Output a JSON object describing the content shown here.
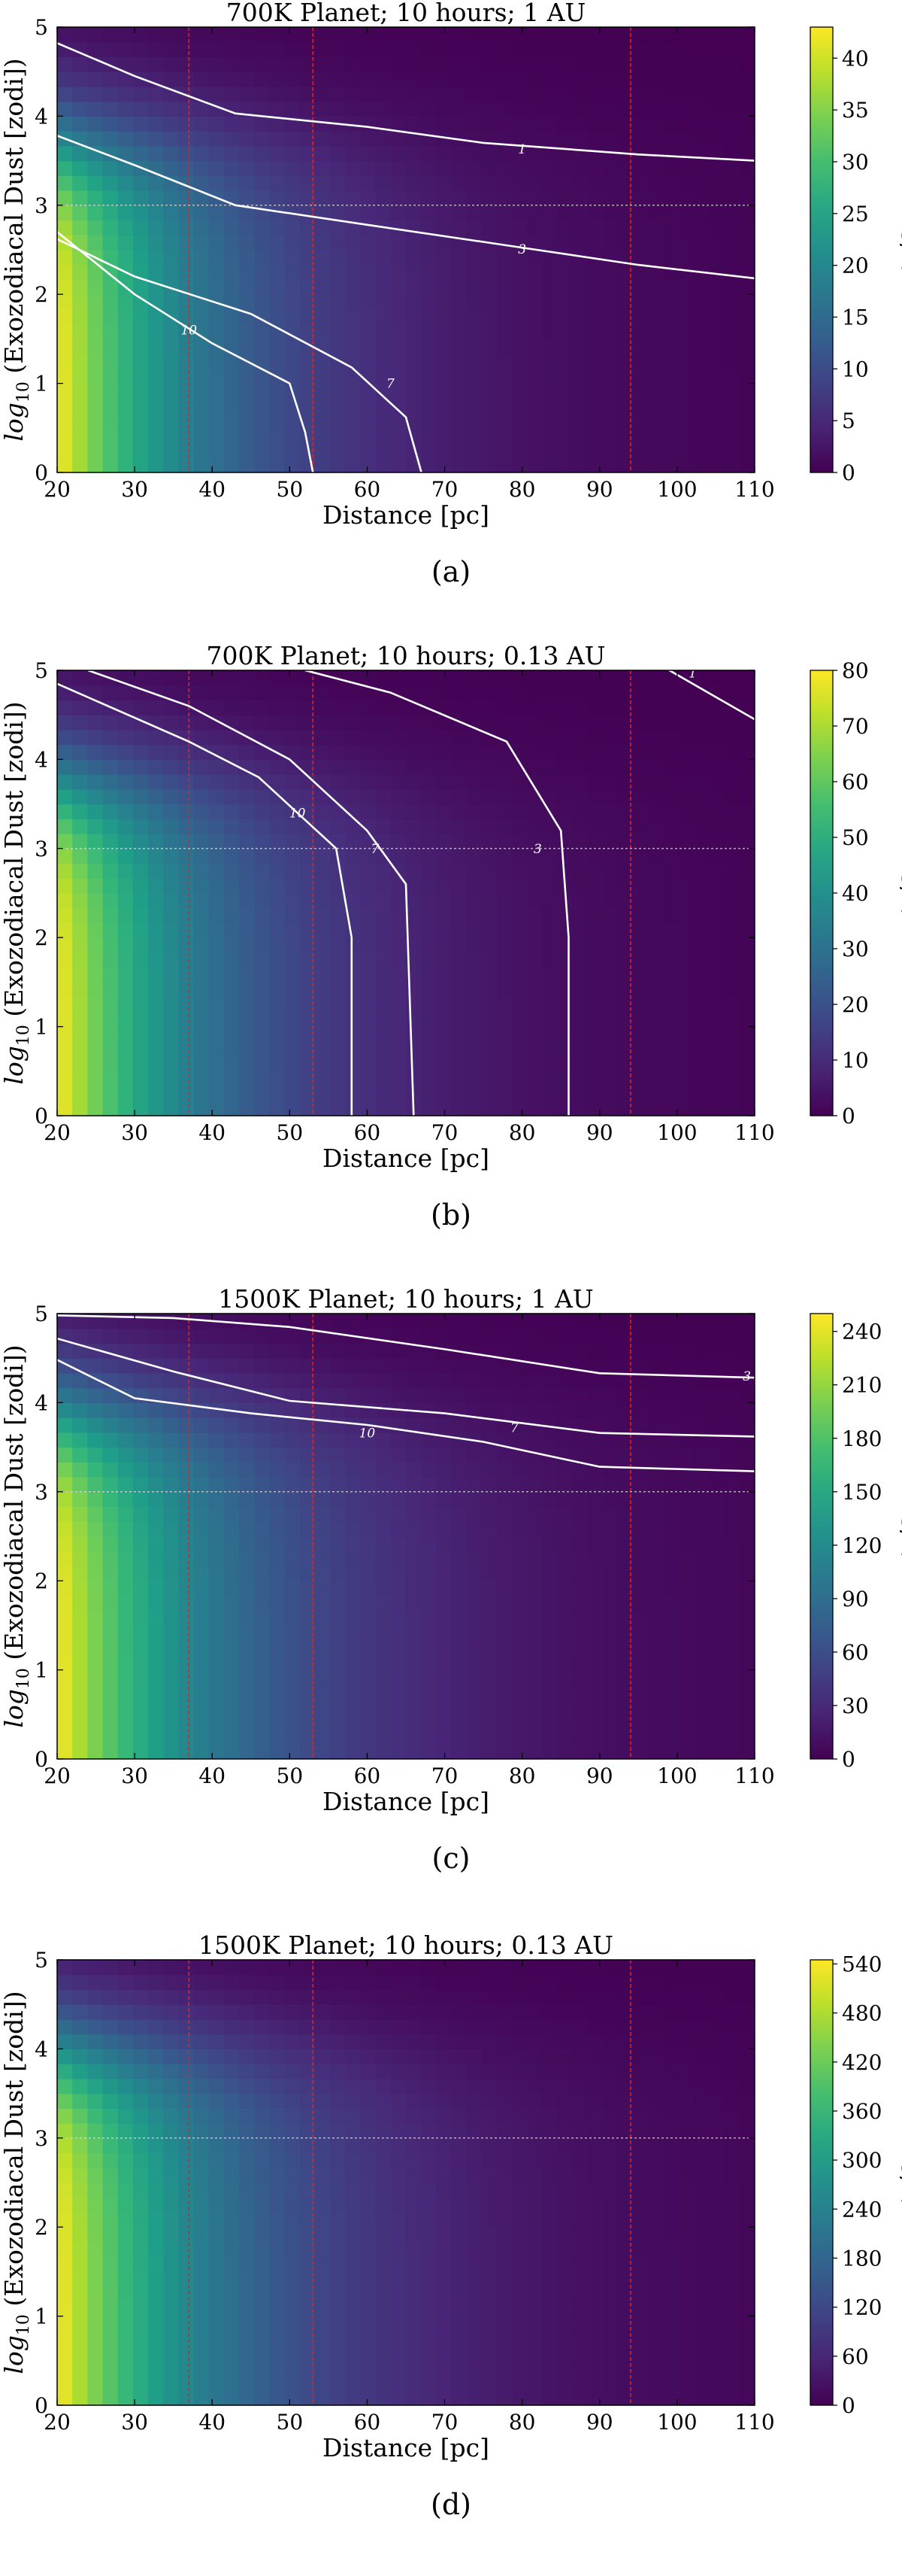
{
  "chart_data": [
    {
      "type": "heatmap",
      "title": "700K Planet; 10 hours; 1 AU",
      "xlabel": "Distance [pc]",
      "ylabel_prefix": "log",
      "ylabel_sub": "10",
      "ylabel_rest": " (Exozodiacal Dust [zodi])",
      "colorbar_label": "S/N",
      "caption": "(a)",
      "xlim": [
        20,
        110
      ],
      "ylim": [
        0,
        5
      ],
      "xticks": [
        "20",
        "30",
        "40",
        "50",
        "60",
        "70",
        "80",
        "90",
        "100",
        "110"
      ],
      "yticks": [
        "0",
        "1",
        "2",
        "3",
        "4",
        "5"
      ],
      "cbar_ticks": [
        "0",
        "5",
        "10",
        "15",
        "20",
        "25",
        "30",
        "35",
        "40"
      ],
      "cbar_ticks_values": [
        0,
        5,
        10,
        15,
        20,
        25,
        30,
        35,
        40
      ],
      "vmax": 43,
      "field": {
        "peak": 43,
        "x_scale": 20,
        "z_scale": 20
      },
      "contours": [
        {
          "level": "1",
          "points": [
            [
              20,
              4.82
            ],
            [
              30,
              4.45
            ],
            [
              43,
              4.03
            ],
            [
              60,
              3.88
            ],
            [
              75,
              3.7
            ],
            [
              95,
              3.57
            ],
            [
              110,
              3.5
            ]
          ],
          "label_at": [
            80,
            3.63
          ]
        },
        {
          "level": "3",
          "points": [
            [
              20,
              3.78
            ],
            [
              30,
              3.45
            ],
            [
              43,
              3.0
            ],
            [
              60,
              2.78
            ],
            [
              78,
              2.55
            ],
            [
              95,
              2.33
            ],
            [
              110,
              2.18
            ]
          ],
          "label_at": [
            80,
            2.51
          ]
        },
        {
          "level": "7",
          "points": [
            [
              20,
              2.62
            ],
            [
              30,
              2.2
            ],
            [
              45,
              1.78
            ],
            [
              58,
              1.18
            ],
            [
              65,
              0.62
            ],
            [
              67,
              0.0
            ]
          ],
          "label_at": [
            63,
            1.0
          ]
        },
        {
          "level": "10",
          "points": [
            [
              20,
              2.7
            ],
            [
              30,
              2.0
            ],
            [
              40,
              1.45
            ],
            [
              50,
              1.0
            ],
            [
              52,
              0.45
            ],
            [
              53,
              0.0
            ]
          ],
          "label_at": [
            37,
            1.6
          ]
        }
      ],
      "vlines": [
        37,
        53,
        94
      ],
      "hline": 3
    },
    {
      "type": "heatmap",
      "title": "700K Planet; 10 hours; 0.13 AU",
      "xlabel": "Distance [pc]",
      "ylabel_prefix": "log",
      "ylabel_sub": "10",
      "ylabel_rest": " (Exozodiacal Dust [zodi])",
      "colorbar_label": "S/N",
      "caption": "(b)",
      "xlim": [
        20,
        110
      ],
      "ylim": [
        0,
        5
      ],
      "xticks": [
        "20",
        "30",
        "40",
        "50",
        "60",
        "70",
        "80",
        "90",
        "100",
        "110"
      ],
      "yticks": [
        "0",
        "1",
        "2",
        "3",
        "4",
        "5"
      ],
      "cbar_ticks": [
        "0",
        "10",
        "20",
        "30",
        "40",
        "50",
        "60",
        "70",
        "80"
      ],
      "cbar_ticks_values": [
        0,
        10,
        20,
        30,
        40,
        50,
        60,
        70,
        80
      ],
      "vmax": 80,
      "field": {
        "peak": 80,
        "x_scale": 20,
        "z_scale": 18
      },
      "contours": [
        {
          "level": "1",
          "points": [
            [
              98,
              5.05
            ],
            [
              103,
              4.8
            ],
            [
              110,
              4.45
            ]
          ],
          "label_at": [
            102,
            4.97
          ]
        },
        {
          "level": "3",
          "points": [
            [
              52,
              5.0
            ],
            [
              63,
              4.75
            ],
            [
              78,
              4.2
            ],
            [
              85,
              3.2
            ],
            [
              86,
              2.0
            ],
            [
              86,
              0.0
            ]
          ],
          "label_at": [
            82,
            3.0
          ]
        },
        {
          "level": "7",
          "points": [
            [
              24,
              5.0
            ],
            [
              37,
              4.6
            ],
            [
              50,
              4.0
            ],
            [
              60,
              3.2
            ],
            [
              65,
              2.6
            ],
            [
              66,
              0.0
            ]
          ],
          "label_at": [
            61,
            3.0
          ]
        },
        {
          "level": "10",
          "points": [
            [
              20,
              4.85
            ],
            [
              37,
              4.2
            ],
            [
              46,
              3.8
            ],
            [
              56,
              3.0
            ],
            [
              58,
              2.0
            ],
            [
              58,
              0.0
            ]
          ],
          "label_at": [
            51,
            3.4
          ]
        }
      ],
      "vlines": [
        37,
        53,
        94
      ],
      "hline": 3
    },
    {
      "type": "heatmap",
      "title": "1500K Planet; 10 hours; 1 AU",
      "xlabel": "Distance [pc]",
      "ylabel_prefix": "log",
      "ylabel_sub": "10",
      "ylabel_rest": " (Exozodiacal Dust [zodi])",
      "colorbar_label": "S/N",
      "caption": "(c)",
      "xlim": [
        20,
        110
      ],
      "ylim": [
        0,
        5
      ],
      "xticks": [
        "20",
        "30",
        "40",
        "50",
        "60",
        "70",
        "80",
        "90",
        "100",
        "110"
      ],
      "yticks": [
        "0",
        "1",
        "2",
        "3",
        "4",
        "5"
      ],
      "cbar_ticks": [
        "0",
        "30",
        "60",
        "90",
        "120",
        "150",
        "180",
        "210",
        "240"
      ],
      "cbar_ticks_values": [
        0,
        30,
        60,
        90,
        120,
        150,
        180,
        210,
        240
      ],
      "vmax": 250,
      "field": {
        "peak": 250,
        "x_scale": 22,
        "z_scale": 12
      },
      "contours": [
        {
          "level": "3",
          "points": [
            [
              20,
              4.98
            ],
            [
              35,
              4.95
            ],
            [
              50,
              4.85
            ],
            [
              70,
              4.6
            ],
            [
              90,
              4.33
            ],
            [
              110,
              4.28
            ]
          ],
          "label_at": [
            109,
            4.3
          ]
        },
        {
          "level": "7",
          "points": [
            [
              20,
              4.72
            ],
            [
              35,
              4.35
            ],
            [
              50,
              4.02
            ],
            [
              70,
              3.88
            ],
            [
              90,
              3.66
            ],
            [
              110,
              3.62
            ]
          ],
          "label_at": [
            79,
            3.72
          ]
        },
        {
          "level": "10",
          "points": [
            [
              20,
              4.48
            ],
            [
              30,
              4.05
            ],
            [
              45,
              3.88
            ],
            [
              60,
              3.75
            ],
            [
              75,
              3.56
            ],
            [
              90,
              3.28
            ],
            [
              110,
              3.23
            ]
          ],
          "label_at": [
            60,
            3.66
          ]
        }
      ],
      "vlines": [
        37,
        53,
        94
      ],
      "hline": 3
    },
    {
      "type": "heatmap",
      "title": "1500K Planet; 10 hours; 0.13 AU",
      "xlabel": "Distance [pc]",
      "ylabel_prefix": "log",
      "ylabel_sub": "10",
      "ylabel_rest": " (Exozodiacal Dust [zodi])",
      "colorbar_label": "S/N",
      "caption": "(d)",
      "xlim": [
        20,
        110
      ],
      "ylim": [
        0,
        5
      ],
      "xticks": [
        "20",
        "30",
        "40",
        "50",
        "60",
        "70",
        "80",
        "90",
        "100",
        "110"
      ],
      "yticks": [
        "0",
        "1",
        "2",
        "3",
        "4",
        "5"
      ],
      "cbar_ticks": [
        "0",
        "60",
        "120",
        "180",
        "240",
        "300",
        "360",
        "420",
        "480",
        "540"
      ],
      "cbar_ticks_values": [
        0,
        60,
        120,
        180,
        240,
        300,
        360,
        420,
        480,
        540
      ],
      "vmax": 545,
      "field": {
        "peak": 545,
        "x_scale": 22,
        "z_scale": 10
      },
      "contours": [],
      "vlines": [
        37,
        53,
        94
      ],
      "hline": 3
    }
  ]
}
